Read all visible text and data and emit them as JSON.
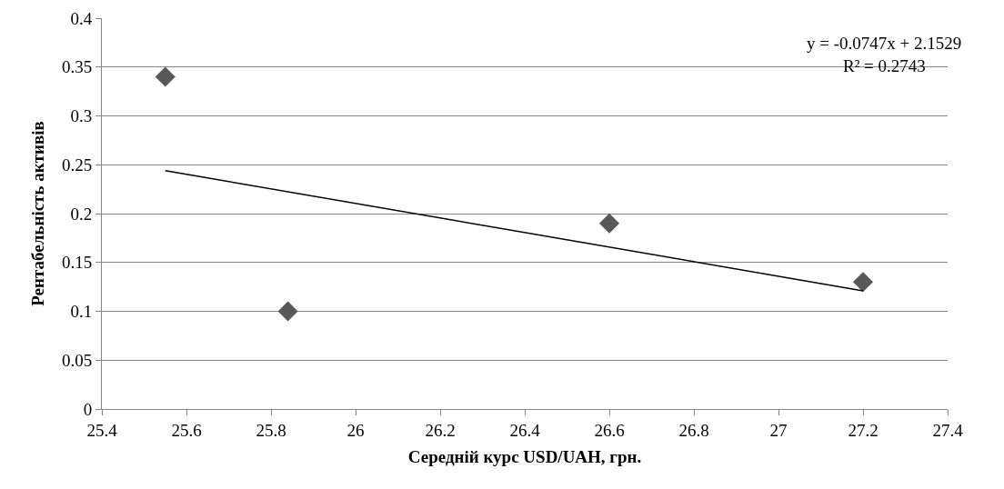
{
  "chart_data": {
    "type": "scatter",
    "xlabel": "Середній курс USD/UAH, грн.",
    "ylabel": "Рентабельність активів",
    "x": [
      25.55,
      25.84,
      26.6,
      27.2
    ],
    "series": [
      {
        "color": "#595959",
        "marker": "diamond",
        "values": [
          0.34,
          0.1,
          0.19,
          0.13
        ]
      },
      {
        "type": "line",
        "color": "#000000",
        "marker": "none",
        "line_style": "solid",
        "x": [
          25.55,
          27.2
        ],
        "values": [
          0.244,
          0.121
        ]
      }
    ],
    "xlim": [
      25.4,
      27.4
    ],
    "xticks": [
      25.4,
      25.6,
      25.8,
      26,
      26.2,
      26.4,
      26.6,
      26.8,
      27,
      27.2,
      27.4
    ],
    "ylim": [
      0,
      0.4
    ],
    "yticks": [
      0,
      0.05,
      0.1,
      0.15,
      0.2,
      0.25,
      0.3,
      0.35,
      0.4
    ],
    "grid": "y",
    "annotations": [
      "y = -0.0747x + 2.1529",
      "R² = 0.2743"
    ]
  }
}
